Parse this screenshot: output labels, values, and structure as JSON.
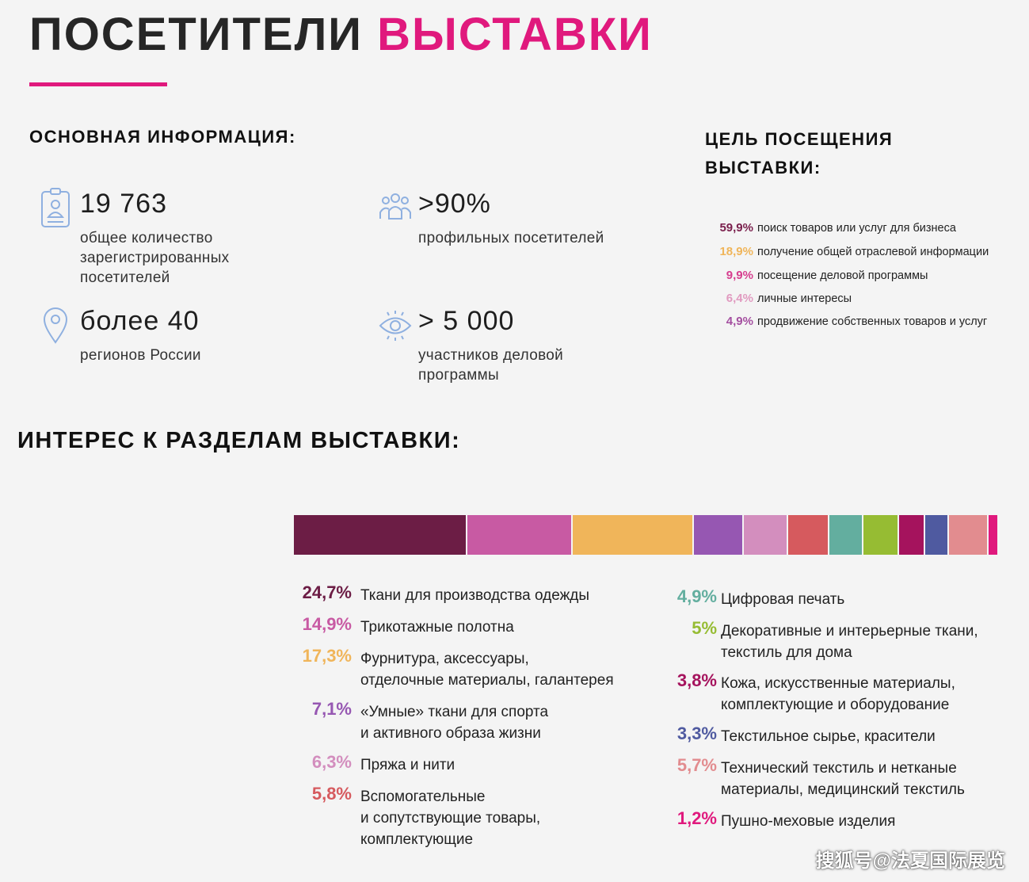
{
  "title": {
    "part1": "ПОСЕТИТЕЛИ",
    "part2": "ВЫСТАВКИ"
  },
  "basic_info": {
    "heading": "ОСНОВНАЯ ИНФОРМАЦИЯ:",
    "stats": [
      {
        "value": "19 763",
        "desc": "общее количество зарегистрированных посетителей",
        "icon": "badge-icon"
      },
      {
        "value": ">90%",
        "desc": "профильных посетителей",
        "icon": "people-icon"
      },
      {
        "value": "более 40",
        "desc": "регионов России",
        "icon": "location-pin-icon"
      },
      {
        "value": "> 5 000",
        "desc": "участников деловой программы",
        "icon": "eye-icon"
      }
    ]
  },
  "purpose": {
    "heading": "ЦЕЛЬ ПОСЕЩЕНИЯ ВЫСТАВКИ:",
    "items": [
      {
        "pct": "59,9%",
        "label": "поиск товаров или услуг для бизнеса",
        "color": "#7a1f4c"
      },
      {
        "pct": "18,9%",
        "label": "получение общей отраслевой информации",
        "color": "#f0b55a"
      },
      {
        "pct": "9,9%",
        "label": "посещение деловой программы",
        "color": "#d63d8e"
      },
      {
        "pct": "6,4%",
        "label": "личные интересы",
        "color": "#e19ac0"
      },
      {
        "pct": "4,9%",
        "label": "продвижение собственных товаров и услуг",
        "color": "#a44fa0"
      }
    ]
  },
  "interest": {
    "heading": "ИНТЕРЕС К РАЗДЕЛАМ ВЫСТАВКИ:",
    "segments": [
      {
        "value": 24.7,
        "color": "#6c1d45"
      },
      {
        "value": 14.9,
        "color": "#c85aa3"
      },
      {
        "value": 17.3,
        "color": "#f0b55a"
      },
      {
        "value": 7.1,
        "color": "#9657b2"
      },
      {
        "value": 6.3,
        "color": "#d38ebe"
      },
      {
        "value": 5.8,
        "color": "#d65a5e"
      },
      {
        "value": 4.9,
        "color": "#63ae9f"
      },
      {
        "value": 5,
        "color": "#96bc33"
      },
      {
        "value": 3.8,
        "color": "#a5135d"
      },
      {
        "value": 3.3,
        "color": "#4f5aa0"
      },
      {
        "value": 5.7,
        "color": "#e28c8f"
      },
      {
        "value": 1.2,
        "color": "#e0197d"
      }
    ],
    "legend_left": [
      {
        "pct": "24,7%",
        "label": "Ткани для производства одежды",
        "color": "#6c1d45"
      },
      {
        "pct": "14,9%",
        "label": "Трикотажные полотна",
        "color": "#c85aa3"
      },
      {
        "pct": "17,3%",
        "label": "Фурнитура, аксессуары,\nотделочные материалы, галантерея",
        "color": "#f0b55a"
      },
      {
        "pct": "7,1%",
        "label": "«Умные» ткани для спорта\nи активного образа жизни",
        "color": "#9657b2"
      },
      {
        "pct": "6,3%",
        "label": "Пряжа и нити",
        "color": "#d38ebe"
      },
      {
        "pct": "5,8%",
        "label": "Вспомогательные\nи сопутствующие товары,\nкомплектующие",
        "color": "#d65a5e"
      }
    ],
    "legend_right": [
      {
        "pct": "4,9%",
        "label": "Цифровая печать",
        "color": "#63ae9f"
      },
      {
        "pct": "5%",
        "label": "Декоративные и интерьерные ткани,\nтекстиль для дома",
        "color": "#96bc33"
      },
      {
        "pct": "3,8%",
        "label": "Кожа, искусственные материалы,\nкомплектующие и оборудование",
        "color": "#a5135d"
      },
      {
        "pct": "3,3%",
        "label": "Текстильное сырье, красители",
        "color": "#4f5aa0"
      },
      {
        "pct": "5,7%",
        "label": "Технический текстиль и нетканые\nматериалы, медицинский текстиль",
        "color": "#e28c8f"
      },
      {
        "pct": "1,2%",
        "label": "Пушно-меховые изделия",
        "color": "#e0197d"
      }
    ]
  },
  "watermark": "搜狐号@法夏国际展览"
}
